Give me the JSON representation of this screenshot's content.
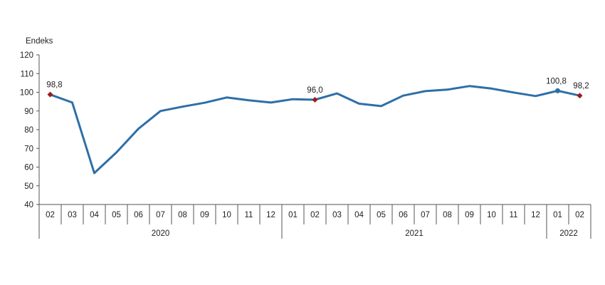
{
  "chart_data": {
    "type": "line",
    "ylabel": "Endeks",
    "ylim": [
      40,
      120
    ],
    "yticks": [
      40,
      50,
      60,
      70,
      80,
      90,
      100,
      110,
      120
    ],
    "grid": false,
    "categories": [
      "02",
      "03",
      "04",
      "05",
      "06",
      "07",
      "08",
      "09",
      "10",
      "11",
      "12",
      "01",
      "02",
      "03",
      "04",
      "05",
      "06",
      "07",
      "08",
      "09",
      "10",
      "11",
      "12",
      "01",
      "02"
    ],
    "years": [
      {
        "label": "2020",
        "start": 0,
        "end": 10
      },
      {
        "label": "2021",
        "start": 11,
        "end": 22
      },
      {
        "label": "2022",
        "start": 23,
        "end": 24
      }
    ],
    "series": [
      {
        "values": [
          98.8,
          94.5,
          56.8,
          67.8,
          80.5,
          90.0,
          92.3,
          94.4,
          97.2,
          95.7,
          94.5,
          96.3,
          96.0,
          99.4,
          93.9,
          92.6,
          98.2,
          100.6,
          101.4,
          103.3,
          102.0,
          99.9,
          98.0,
          100.8,
          98.2
        ],
        "color": "#2e6fa7"
      }
    ],
    "annotations": [
      {
        "index": 0,
        "text": "98,8",
        "marker": "diamond",
        "color": "#9b1c1c"
      },
      {
        "index": 12,
        "text": "96,0",
        "marker": "diamond",
        "color": "#9b1c1c"
      },
      {
        "index": 23,
        "text": "100,8",
        "marker": "circle",
        "color": "#2e6fa7"
      },
      {
        "index": 24,
        "text": "98,2",
        "marker": "diamond",
        "color": "#9b1c1c"
      }
    ]
  }
}
